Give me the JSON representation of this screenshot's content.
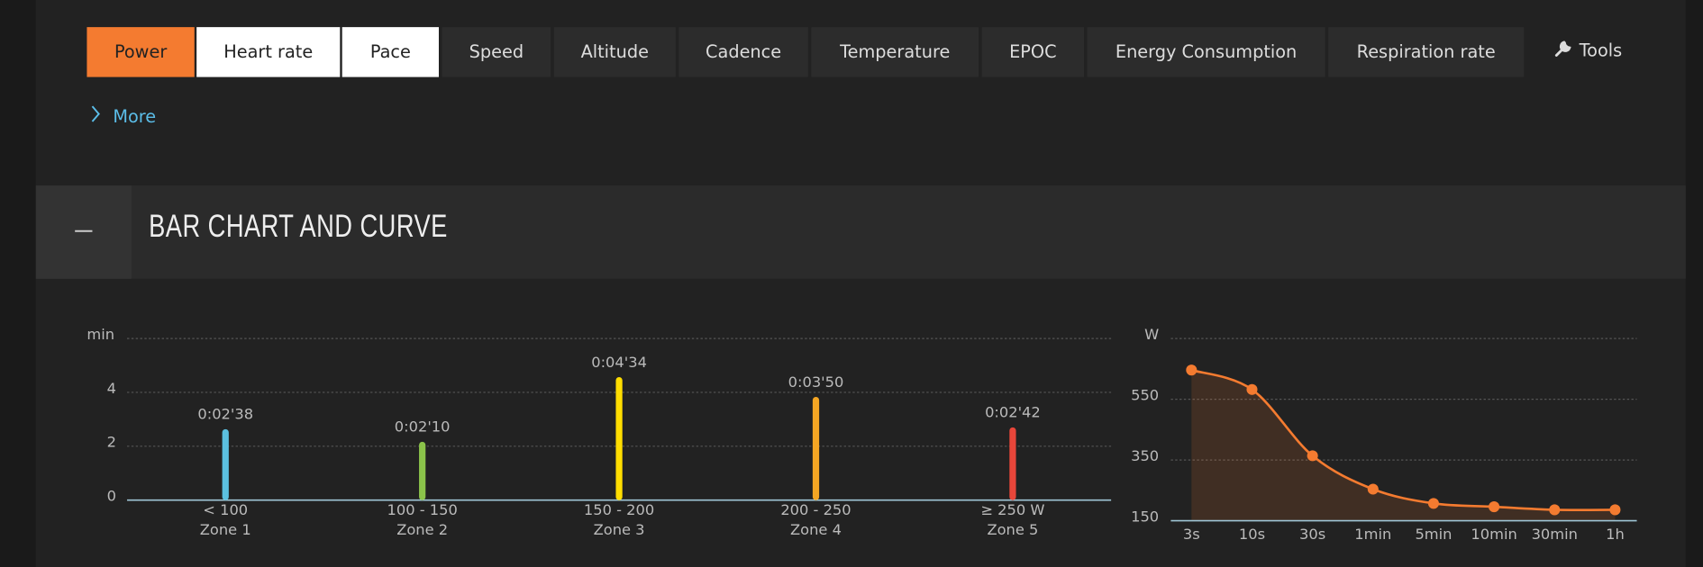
{
  "tabs": [
    "Power",
    "Heart rate",
    "Pace",
    "Speed",
    "Altitude",
    "Cadence",
    "Temperature",
    "EPOC",
    "Energy Consumption",
    "Respiration rate"
  ],
  "tools": "Tools",
  "more": "More",
  "section_title": "BAR CHART AND CURVE",
  "chart_data": [
    {
      "type": "bar",
      "y_label": "min",
      "categories": [
        "< 100",
        "100 - 150",
        "150 - 200",
        "200 - 250",
        "≥ 250 W"
      ],
      "zones": [
        "Zone 1",
        "Zone 2",
        "Zone 3",
        "Zone 4",
        "Zone 5"
      ],
      "values": [
        2.633,
        2.167,
        4.567,
        3.833,
        2.7
      ],
      "value_labels": [
        "0:02'38",
        "0:02'10",
        "0:04'34",
        "0:03'50",
        "0:02'42"
      ],
      "colors": [
        "#5bc0e0",
        "#8bc34a",
        "#ffdd00",
        "#f5a623",
        "#e8463a"
      ],
      "ylim": [
        0,
        6
      ],
      "yticks": [
        0,
        2,
        4
      ],
      "grid": true
    },
    {
      "type": "line",
      "y_label": "W",
      "categories": [
        "3s",
        "10s",
        "30s",
        "1min",
        "5min",
        "10min",
        "30min",
        "1h"
      ],
      "values": [
        646,
        582,
        364,
        254,
        207,
        196,
        186,
        186
      ],
      "color": "#f47b30",
      "area": true,
      "ylim": [
        150,
        750
      ],
      "yticks": [
        150,
        350,
        550
      ],
      "grid": true
    }
  ]
}
